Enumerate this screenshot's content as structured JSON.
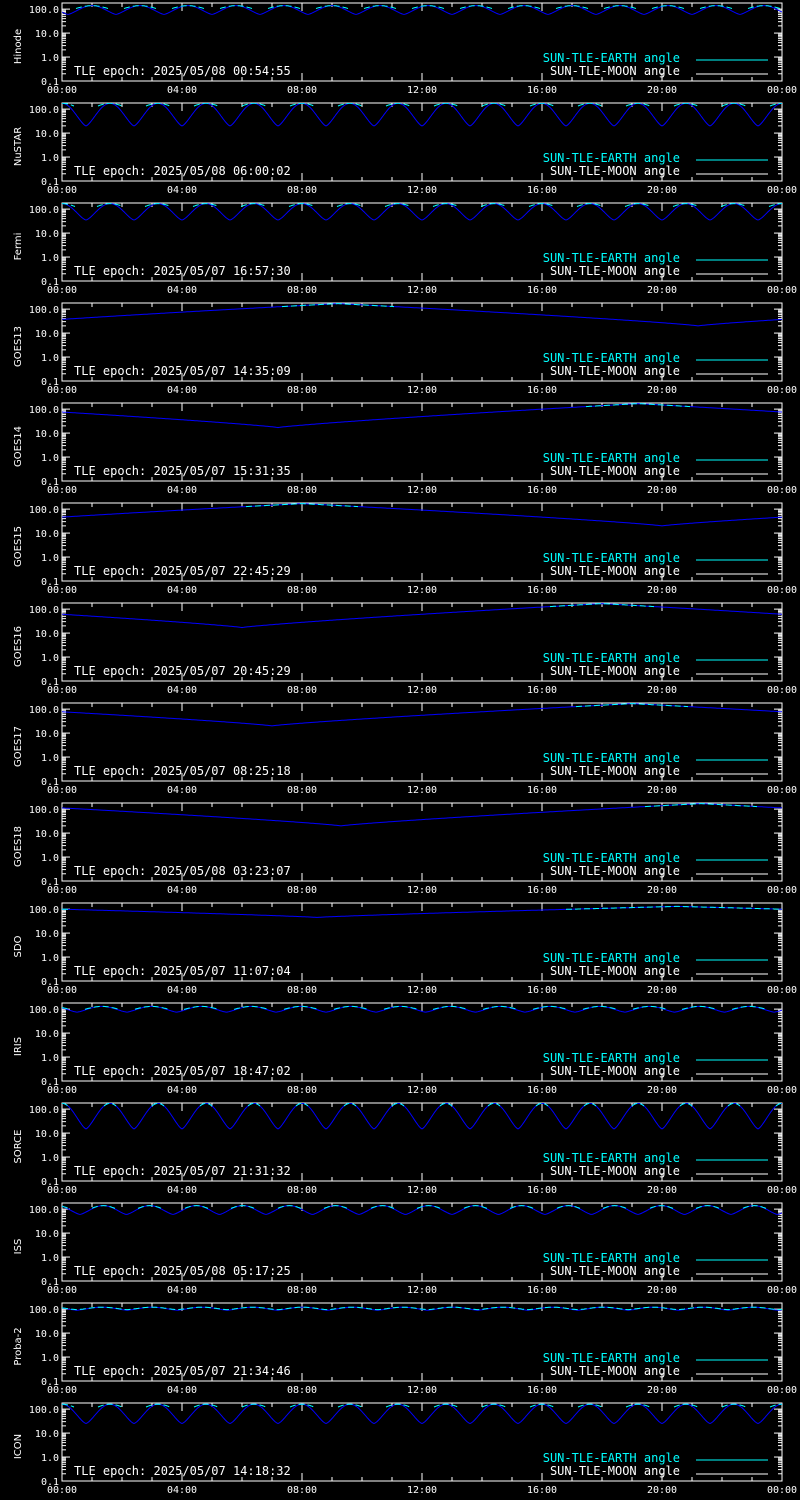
{
  "colors": {
    "background": "#000000",
    "axes": "#ffffff",
    "earth": "#00ffff",
    "moon": "#ffffff",
    "moon_curve": "#0000ff"
  },
  "shared": {
    "x_ticks": [
      "00:00",
      "04:00",
      "08:00",
      "12:00",
      "16:00",
      "20:00",
      "00:00"
    ],
    "y_ticks": [
      "100.0",
      "10.0",
      "1.0",
      "0.1"
    ],
    "legend_earth": "SUN-TLE-EARTH angle",
    "legend_moon": "SUN-TLE-MOON angle"
  },
  "chart_data": [
    {
      "type": "line",
      "panel_label": "Hinode",
      "epoch": "TLE epoch: 2025/05/08 00:54:55",
      "ylim": [
        0.1,
        180
      ],
      "y_scale": "log",
      "xlim": [
        0,
        24
      ],
      "series": [
        {
          "curve": "earth",
          "kind": "periodic",
          "period_h": 1.6,
          "phase_h": 0.2,
          "min_deg": 90,
          "max_deg": 140
        },
        {
          "curve": "moon",
          "kind": "periodic",
          "period_h": 1.6,
          "phase_h": 0.2,
          "min_deg": 60,
          "max_deg": 140
        }
      ]
    },
    {
      "type": "line",
      "panel_label": "NuSTAR",
      "epoch": "TLE epoch: 2025/05/08 06:00:02",
      "ylim": [
        0.1,
        180
      ],
      "y_scale": "log",
      "xlim": [
        0,
        24
      ],
      "series": [
        {
          "curve": "earth",
          "kind": "periodic",
          "period_h": 1.6,
          "phase_h": 0.8,
          "min_deg": 90,
          "max_deg": 175
        },
        {
          "curve": "moon",
          "kind": "periodic",
          "period_h": 1.6,
          "phase_h": 0.8,
          "min_deg": 20,
          "max_deg": 175
        }
      ]
    },
    {
      "type": "line",
      "panel_label": "Fermi",
      "epoch": "TLE epoch: 2025/05/07 16:57:30",
      "ylim": [
        0.1,
        180
      ],
      "y_scale": "log",
      "xlim": [
        0,
        24
      ],
      "series": [
        {
          "curve": "earth",
          "kind": "periodic",
          "period_h": 1.6,
          "phase_h": 0.8,
          "min_deg": 90,
          "max_deg": 170
        },
        {
          "curve": "moon",
          "kind": "periodic",
          "period_h": 1.6,
          "phase_h": 0.8,
          "min_deg": 35,
          "max_deg": 170
        }
      ]
    },
    {
      "type": "line",
      "panel_label": "GOES13",
      "epoch": "TLE epoch: 2025/05/07 14:35:09",
      "ylim": [
        0.1,
        180
      ],
      "y_scale": "log",
      "xlim": [
        0,
        24
      ],
      "series": [
        {
          "curve": "earth",
          "kind": "diurnal",
          "min_h": 21.2,
          "min_deg": 20,
          "max_deg": 170
        },
        {
          "curve": "moon",
          "kind": "diurnal",
          "min_h": 21.2,
          "min_deg": 20,
          "max_deg": 170
        }
      ]
    },
    {
      "type": "line",
      "panel_label": "GOES14",
      "epoch": "TLE epoch: 2025/05/07 15:31:35",
      "ylim": [
        0.1,
        180
      ],
      "y_scale": "log",
      "xlim": [
        0,
        24
      ],
      "series": [
        {
          "curve": "earth",
          "kind": "diurnal",
          "min_h": 7.2,
          "min_deg": 17,
          "max_deg": 170
        },
        {
          "curve": "moon",
          "kind": "diurnal",
          "min_h": 7.2,
          "min_deg": 17,
          "max_deg": 170
        }
      ]
    },
    {
      "type": "line",
      "panel_label": "GOES15",
      "epoch": "TLE epoch: 2025/05/07 22:45:29",
      "ylim": [
        0.1,
        180
      ],
      "y_scale": "log",
      "xlim": [
        0,
        24
      ],
      "series": [
        {
          "curve": "earth",
          "kind": "diurnal",
          "min_h": 20.0,
          "min_deg": 20,
          "max_deg": 170
        },
        {
          "curve": "moon",
          "kind": "diurnal",
          "min_h": 20.0,
          "min_deg": 20,
          "max_deg": 170
        }
      ]
    },
    {
      "type": "line",
      "panel_label": "GOES16",
      "epoch": "TLE epoch: 2025/05/07 20:45:29",
      "ylim": [
        0.1,
        180
      ],
      "y_scale": "log",
      "xlim": [
        0,
        24
      ],
      "series": [
        {
          "curve": "earth",
          "kind": "diurnal",
          "min_h": 6.0,
          "min_deg": 17,
          "max_deg": 170
        },
        {
          "curve": "moon",
          "kind": "diurnal",
          "min_h": 6.0,
          "min_deg": 17,
          "max_deg": 170
        }
      ]
    },
    {
      "type": "line",
      "panel_label": "GOES17",
      "epoch": "TLE epoch: 2025/05/07 08:25:18",
      "ylim": [
        0.1,
        180
      ],
      "y_scale": "log",
      "xlim": [
        0,
        24
      ],
      "series": [
        {
          "curve": "earth",
          "kind": "diurnal",
          "min_h": 7.0,
          "min_deg": 20,
          "max_deg": 170
        },
        {
          "curve": "moon",
          "kind": "diurnal",
          "min_h": 7.0,
          "min_deg": 20,
          "max_deg": 170
        }
      ]
    },
    {
      "type": "line",
      "panel_label": "GOES18",
      "epoch": "TLE epoch: 2025/05/08 03:23:07",
      "ylim": [
        0.1,
        180
      ],
      "y_scale": "log",
      "xlim": [
        0,
        24
      ],
      "series": [
        {
          "curve": "earth",
          "kind": "diurnal",
          "min_h": 9.3,
          "min_deg": 20,
          "max_deg": 170
        },
        {
          "curve": "moon",
          "kind": "diurnal",
          "min_h": 9.3,
          "min_deg": 20,
          "max_deg": 170
        }
      ]
    },
    {
      "type": "line",
      "panel_label": "SDO",
      "epoch": "TLE epoch: 2025/05/07 11:07:04",
      "ylim": [
        0.1,
        180
      ],
      "y_scale": "log",
      "xlim": [
        0,
        24
      ],
      "series": [
        {
          "curve": "earth",
          "kind": "diurnal",
          "min_h": 8.5,
          "min_deg": 45,
          "max_deg": 130
        },
        {
          "curve": "moon",
          "kind": "diurnal",
          "min_h": 8.5,
          "min_deg": 45,
          "max_deg": 130
        }
      ]
    },
    {
      "type": "line",
      "panel_label": "IRIS",
      "epoch": "TLE epoch: 2025/05/07 18:47:02",
      "ylim": [
        0.1,
        180
      ],
      "y_scale": "log",
      "xlim": [
        0,
        24
      ],
      "series": [
        {
          "curve": "earth",
          "kind": "periodic",
          "period_h": 1.66,
          "phase_h": 0.5,
          "min_deg": 85,
          "max_deg": 130
        },
        {
          "curve": "moon",
          "kind": "periodic",
          "period_h": 1.66,
          "phase_h": 0.5,
          "min_deg": 75,
          "max_deg": 130
        }
      ]
    },
    {
      "type": "line",
      "panel_label": "SORCE",
      "epoch": "TLE epoch: 2025/05/07 21:31:32",
      "ylim": [
        0.1,
        180
      ],
      "y_scale": "log",
      "xlim": [
        0,
        24
      ],
      "series": [
        {
          "curve": "earth",
          "kind": "periodic",
          "period_h": 1.6,
          "phase_h": 0.8,
          "min_deg": 15,
          "max_deg": 175
        },
        {
          "curve": "moon",
          "kind": "periodic",
          "period_h": 1.6,
          "phase_h": 0.8,
          "min_deg": 15,
          "max_deg": 175
        }
      ]
    },
    {
      "type": "line",
      "panel_label": "ISS",
      "epoch": "TLE epoch: 2025/05/08 05:17:25",
      "ylim": [
        0.1,
        180
      ],
      "y_scale": "log",
      "xlim": [
        0,
        24
      ],
      "series": [
        {
          "curve": "earth",
          "kind": "periodic",
          "period_h": 1.55,
          "phase_h": 0.6,
          "min_deg": 70,
          "max_deg": 140
        },
        {
          "curve": "moon",
          "kind": "periodic",
          "period_h": 1.55,
          "phase_h": 0.6,
          "min_deg": 60,
          "max_deg": 140
        }
      ]
    },
    {
      "type": "line",
      "panel_label": "Proba-2",
      "epoch": "TLE epoch: 2025/05/07 21:34:46",
      "ylim": [
        0.1,
        180
      ],
      "y_scale": "log",
      "xlim": [
        0,
        24
      ],
      "series": [
        {
          "curve": "earth",
          "kind": "periodic",
          "period_h": 1.67,
          "phase_h": 0.5,
          "min_deg": 95,
          "max_deg": 120
        },
        {
          "curve": "moon",
          "kind": "periodic",
          "period_h": 1.67,
          "phase_h": 0.5,
          "min_deg": 90,
          "max_deg": 120
        }
      ]
    },
    {
      "type": "line",
      "panel_label": "ICON",
      "epoch": "TLE epoch: 2025/05/07 14:18:32",
      "ylim": [
        0.1,
        180
      ],
      "y_scale": "log",
      "xlim": [
        0,
        24
      ],
      "series": [
        {
          "curve": "earth",
          "kind": "periodic",
          "period_h": 1.6,
          "phase_h": 0.8,
          "min_deg": 80,
          "max_deg": 160
        },
        {
          "curve": "moon",
          "kind": "periodic",
          "period_h": 1.6,
          "phase_h": 0.8,
          "min_deg": 25,
          "max_deg": 160
        }
      ]
    }
  ]
}
